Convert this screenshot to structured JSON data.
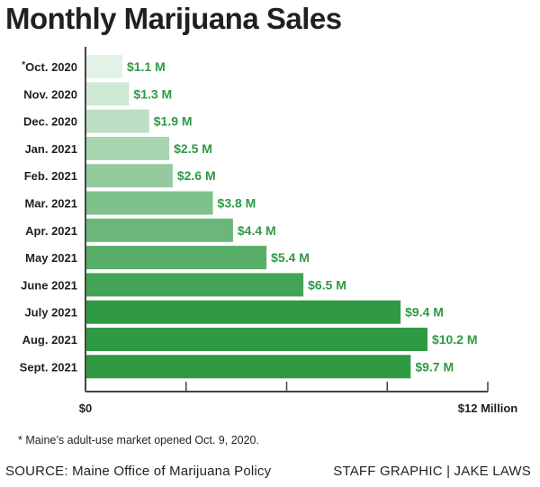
{
  "title": "Monthly Marijuana Sales",
  "chart_data": {
    "type": "bar",
    "orientation": "horizontal",
    "title": "Monthly Marijuana Sales",
    "categories": [
      "Oct. 2020",
      "Nov. 2020",
      "Dec. 2020",
      "Jan. 2021",
      "Feb. 2021",
      "Mar. 2021",
      "Apr. 2021",
      "May 2021",
      "June 2021",
      "July 2021",
      "Aug. 2021",
      "Sept. 2021"
    ],
    "category_markers": [
      "*",
      "",
      "",
      "",
      "",
      "",
      "",
      "",
      "",
      "",
      "",
      ""
    ],
    "values": [
      1.1,
      1.3,
      1.9,
      2.5,
      2.6,
      3.8,
      4.4,
      5.4,
      6.5,
      9.4,
      10.2,
      9.7
    ],
    "value_labels": [
      "$1.1 M",
      "$1.3 M",
      "$1.9 M",
      "$2.5 M",
      "$2.6 M",
      "$3.8 M",
      "$4.4 M",
      "$5.4 M",
      "$6.5 M",
      "$9.4 M",
      "$10.2 M",
      "$9.7 M"
    ],
    "xlim": [
      0,
      12
    ],
    "x_tick_count": 5,
    "x_extent_labels": [
      "$0",
      "$12 Million"
    ],
    "grid": false,
    "colors": {
      "bar_start": "#e3f2e6",
      "bar_end": "#2f9a43",
      "value_label": "#2e9a44",
      "axis": "#444444"
    }
  },
  "footnote": "* Maine’s adult-use market opened Oct. 9, 2020.",
  "source": "SOURCE: Maine Office of Marijuana Policy",
  "credit": "STAFF GRAPHIC | JAKE LAWS"
}
